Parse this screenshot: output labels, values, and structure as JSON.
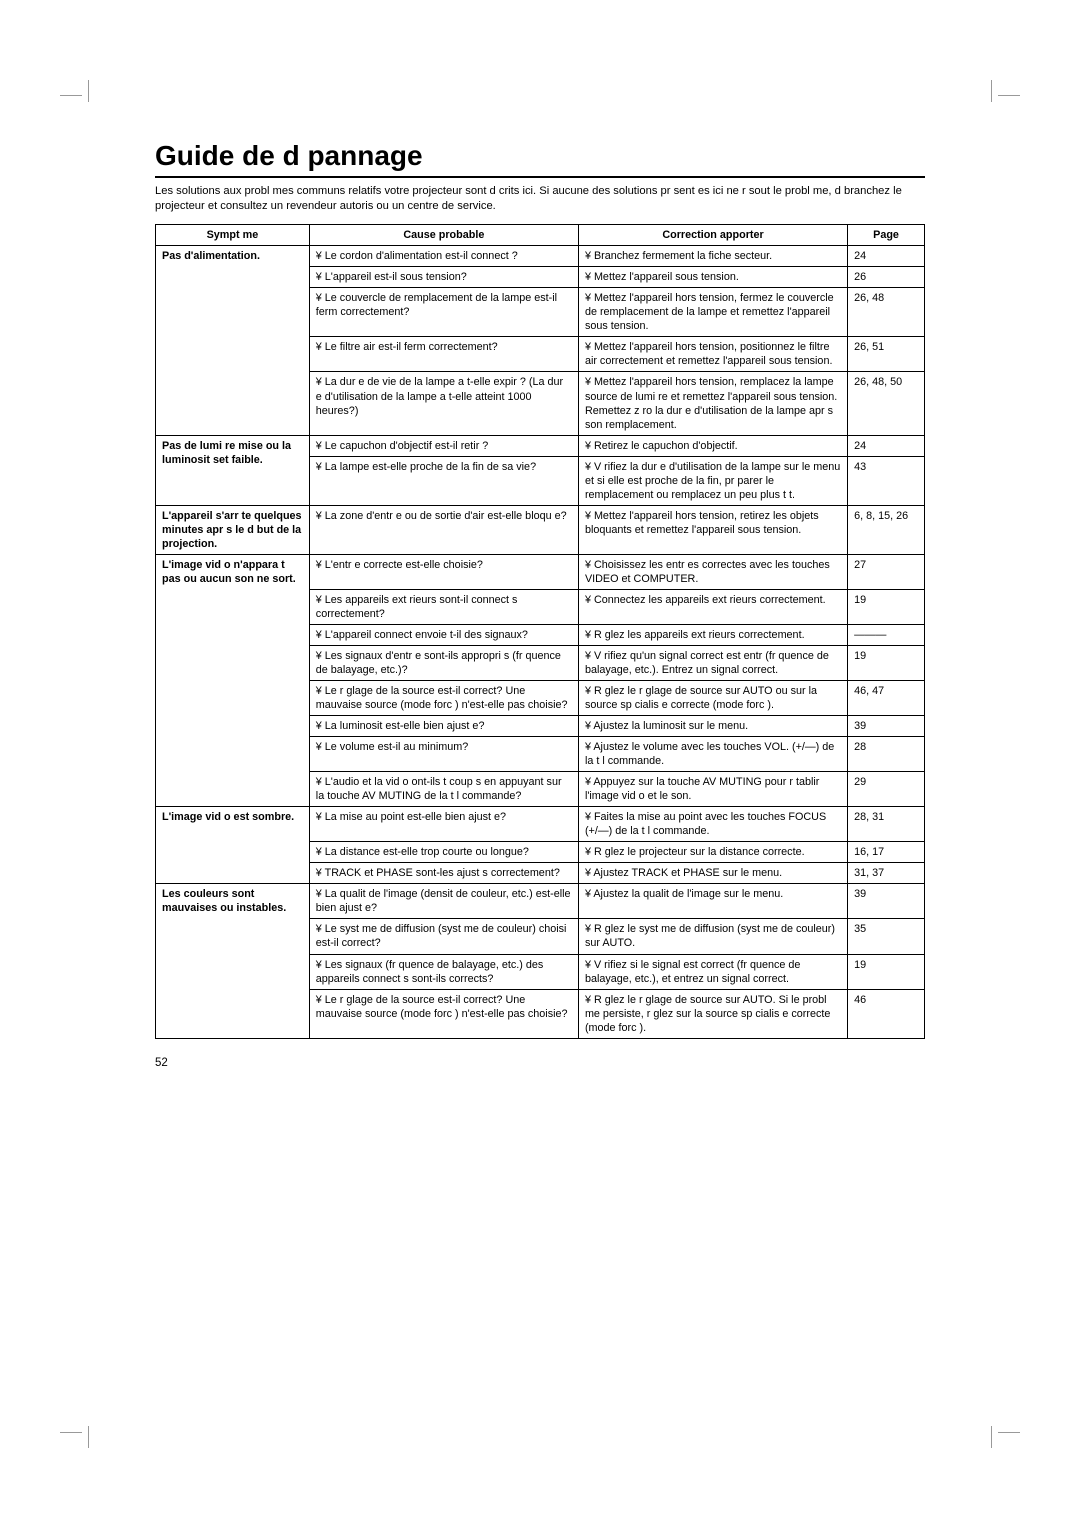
{
  "title": "Guide de d pannage",
  "intro": "Les solutions aux probl mes communs relatifs   votre projecteur sont d crits ici. Si aucune des solutions pr sent es ici ne r sout le probl me, d branchez le projecteur et consultez un revendeur autoris  ou un centre de service.",
  "headers": {
    "symptom": "Sympt me",
    "cause": "Cause probable",
    "correction": "Correction   apporter",
    "page": "Page"
  },
  "page_number": "52",
  "rows": [
    {
      "symptom": "Pas d'alimentation.",
      "symptom_rowspan": 5,
      "cause": "¥ Le cordon d'alimentation est-il connect ?",
      "correction": "¥ Branchez fermement la fiche secteur.",
      "page": "24"
    },
    {
      "cause": "¥ L'appareil est-il sous tension?",
      "correction": "¥ Mettez l'appareil sous tension.",
      "page": "26"
    },
    {
      "cause": "¥ Le couvercle de remplacement de la lampe est-il ferm  correctement?",
      "correction": "¥ Mettez l'appareil hors tension, fermez le couvercle de remplacement de la lampe et remettez l'appareil sous tension.",
      "page": "26, 48"
    },
    {
      "cause": "¥ Le filtre   air est-il ferm  correctement?",
      "correction": "¥ Mettez l'appareil hors tension, positionnez le filtre   air correctement et remettez l'appareil sous tension.",
      "page": "26, 51"
    },
    {
      "cause": "¥ La dur e de vie de la lampe a t-elle expir ? (La dur e d'utilisation de la lampe a t-elle atteint 1000 heures?)",
      "correction": "¥ Mettez l'appareil hors tension, remplacez la lampe source de lumi re et remettez l'appareil sous tension. Remettez   z ro la dur e d'utilisation de la lampe apr s son remplacement.",
      "page": "26, 48, 50"
    },
    {
      "symptom": "Pas de lumi re  mise ou la luminosit  set faible.",
      "symptom_rowspan": 2,
      "cause": "¥ Le capuchon d'objectif est-il retir ?",
      "correction": "¥ Retirez le capuchon d'objectif.",
      "page": "24"
    },
    {
      "cause": "¥ La lampe est-elle proche de la fin de sa vie?",
      "correction": "¥ V rifiez la dur e d'utilisation de la lampe sur le menu et si elle est proche de la fin, pr parer le remplacement ou remplacez un peu plus t t.",
      "page": "43"
    },
    {
      "symptom": "L'appareil s'arr te quelques minutes apr s le d but de la projection.",
      "symptom_rowspan": 1,
      "cause": "¥ La zone d'entr e ou de sortie d'air est-elle bloqu e?",
      "correction": "¥ Mettez l'appareil hors tension, retirez les objets bloquants et remettez l'appareil sous tension.",
      "page": "6, 8, 15, 26"
    },
    {
      "symptom": "L'image vid o n'appara t pas ou aucun son ne sort.",
      "symptom_rowspan": 7,
      "cause": "¥ L'entr e correcte est-elle choisie?",
      "correction": "¥ Choisissez les entr es correctes avec les touches VIDEO et COMPUTER.",
      "page": "27"
    },
    {
      "cause": "¥ Les appareils ext rieurs sont-il connect s correctement?",
      "correction": "¥ Connectez les appareils ext rieurs correctement.",
      "page": "19"
    },
    {
      "cause": "¥ L'appareil connect  envoie t-il des signaux?",
      "correction": "¥ R glez les appareils ext rieurs correctement.",
      "page": "———"
    },
    {
      "cause": "¥ Les signaux d'entr e sont-ils appropri s (fr quence de balayage, etc.)?",
      "correction": "¥ V rifiez qu'un signal correct est entr  (fr quence de balayage, etc.). Entrez un signal correct.",
      "page": "19"
    },
    {
      "cause": "¥ Le r glage de la source est-il correct? Une mauvaise source (mode forc ) n'est-elle pas choisie?",
      "correction": "¥ R glez le r glage de source sur AUTO ou sur la source sp cialis e correcte (mode forc ).",
      "page": "46, 47"
    },
    {
      "cause": "¥ La luminosit  est-elle bien ajust e?",
      "correction": "¥ Ajustez la luminosit  sur le menu.",
      "page": "39"
    },
    {
      "cause": "¥ Le volume est-il au minimum?",
      "correction": "¥ Ajustez le volume avec les touches VOL. (+/—) de la t l commande.",
      "page": "28"
    },
    {
      "symptom": "",
      "symptom_rowspan": 1,
      "cause": "¥ L'audio et la vid o ont-ils  t  coup s en appuyant sur la touche  AV MUTING de la t l commande?",
      "correction": "¥ Appuyez sur la touche AV MUTING pour r tablir l'image vid o et le son.",
      "page": "29",
      "merge_up": true
    },
    {
      "symptom": "L'image vid o est sombre.",
      "symptom_rowspan": 3,
      "cause": "¥ La mise au point est-elle bien ajust e?",
      "correction": "¥ Faites la mise au point avec les touches FOCUS (+/—) de la t l commande.",
      "page": "28, 31"
    },
    {
      "cause": "¥ La distance est-elle trop courte ou longue?",
      "correction": "¥ R glez le projecteur sur la distance correcte.",
      "page": "16, 17"
    },
    {
      "cause": "¥ TRACK et PHASE sont-les ajust s correctement?",
      "correction": "¥ Ajustez TRACK et PHASE sur le menu.",
      "page": "31, 37"
    },
    {
      "symptom": "Les couleurs sont mauvaises ou instables.",
      "symptom_rowspan": 4,
      "cause": "¥ La qualit  de l'image (densit  de couleur, etc.) est-elle bien ajust e?",
      "correction": "¥ Ajustez la qualit  de l'image sur le menu.",
      "page": "39"
    },
    {
      "cause": "¥ Le syst me de diffusion (syst me de couleur) choisi est-il correct?",
      "correction": "¥ R glez le syst me de diffusion (syst me de couleur) sur AUTO.",
      "page": "35"
    },
    {
      "cause": "¥ Les signaux (fr quence de balayage, etc.) des appareils connect s sont-ils corrects?",
      "correction": "¥ V rifiez si le signal est correct (fr quence de balayage, etc.), et entrez un signal correct.",
      "page": "19"
    },
    {
      "cause": "¥ Le r glage de la source est-il correct? Une mauvaise source (mode forc ) n'est-elle pas choisie?",
      "correction": "¥ R glez le r glage de source sur AUTO. Si le probl me persiste, r glez sur la source sp cialis e correcte (mode forc ).",
      "page": "46"
    }
  ]
}
